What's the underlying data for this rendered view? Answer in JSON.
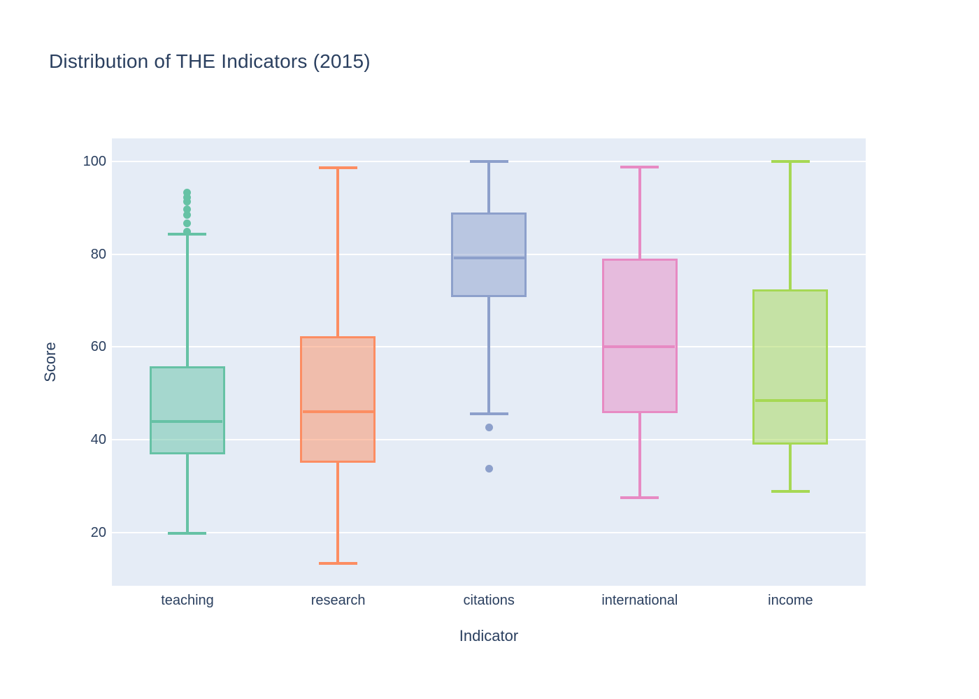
{
  "chart_data": {
    "type": "box",
    "title": "Distribution of THE Indicators (2015)",
    "xlabel": "Indicator",
    "ylabel": "Score",
    "ylim": [
      8.5,
      105
    ],
    "yticks": [
      20,
      40,
      60,
      80,
      100
    ],
    "grid": true,
    "legend_position": "none",
    "plot_bg_color": "#E5ECF6",
    "grid_color": "#ffffff",
    "font_color": "#2a3f5f",
    "categories": [
      "teaching",
      "research",
      "citations",
      "international",
      "income"
    ],
    "series": [
      {
        "name": "teaching",
        "color": "#66c2a5",
        "whisker_low": 19.8,
        "q1": 36.9,
        "median": 44.0,
        "q3": 55.9,
        "whisker_high": 84.4,
        "outliers": [
          93.3,
          92.3,
          91.4,
          89.7,
          88.5,
          86.7,
          84.8
        ]
      },
      {
        "name": "research",
        "color": "#fc8d62",
        "whisker_low": 13.4,
        "q1": 35.0,
        "median": 46.0,
        "q3": 62.3,
        "whisker_high": 98.6,
        "outliers": []
      },
      {
        "name": "citations",
        "color": "#8da0cb",
        "whisker_low": 45.6,
        "q1": 70.8,
        "median": 79.2,
        "q3": 89.0,
        "whisker_high": 100.0,
        "outliers": [
          42.6,
          33.8
        ]
      },
      {
        "name": "international",
        "color": "#e78ac3",
        "whisker_low": 27.5,
        "q1": 45.8,
        "median": 60.0,
        "q3": 79.0,
        "whisker_high": 98.8,
        "outliers": []
      },
      {
        "name": "income",
        "color": "#a6d854",
        "whisker_low": 28.9,
        "q1": 39.0,
        "median": 48.4,
        "q3": 72.5,
        "whisker_high": 100.0,
        "outliers": []
      }
    ]
  }
}
